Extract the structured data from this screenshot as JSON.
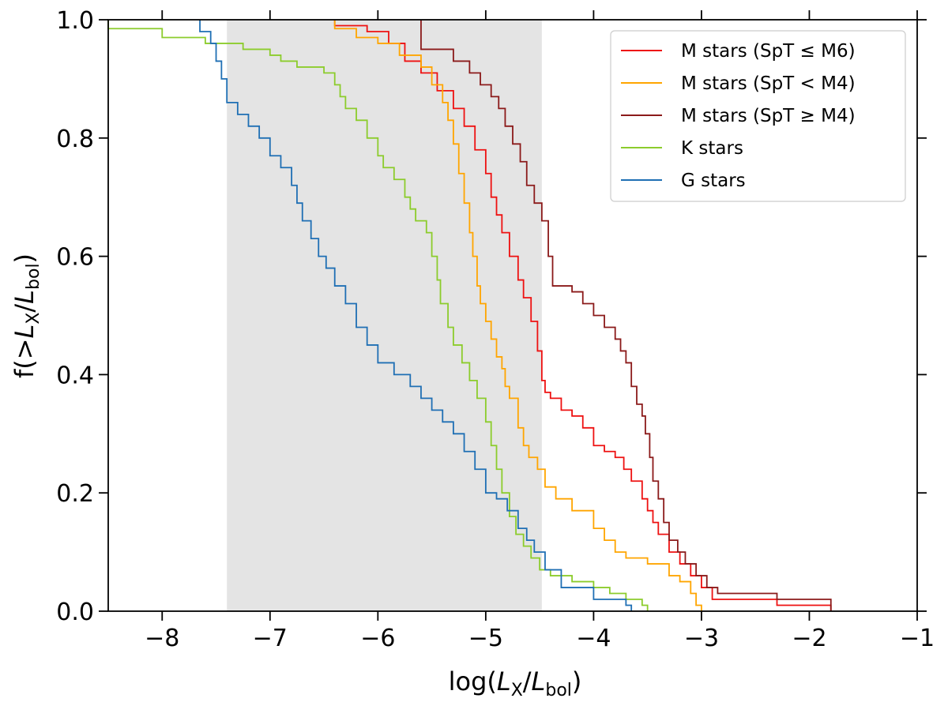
{
  "chart_data": {
    "type": "line",
    "xlabel_parts": {
      "open": "log(",
      "var": "L",
      "sub1": "X",
      "slash": "/",
      "var2": "L",
      "sub2": "bol",
      "close": ")"
    },
    "ylabel_parts": {
      "open": "f(>",
      "var": "L",
      "sub1": "X",
      "slash": "/",
      "var2": "L",
      "sub2": "bol",
      "close": ")"
    },
    "xlim": [
      -8.5,
      -1
    ],
    "ylim": [
      0,
      1
    ],
    "xticks": [
      -8,
      -7,
      -6,
      -5,
      -4,
      -3,
      -2,
      -1
    ],
    "xtick_labels": [
      "−8",
      "−7",
      "−6",
      "−5",
      "−4",
      "−3",
      "−2",
      "−1"
    ],
    "yticks": [
      0,
      0.2,
      0.4,
      0.6,
      0.8,
      1.0
    ],
    "ytick_labels": [
      "0.0",
      "0.2",
      "0.4",
      "0.6",
      "0.8",
      "1.0"
    ],
    "shaded_region": {
      "x": [
        -7.4,
        -4.48
      ],
      "color": "#e4e4e4"
    },
    "grid": false,
    "legend_position": "top-right",
    "series": [
      {
        "name": "M stars (SpT ≤ M6)",
        "color": "#ee1111",
        "points": [
          [
            -6.4,
            1.0
          ],
          [
            -6.4,
            0.99
          ],
          [
            -6.1,
            0.98
          ],
          [
            -5.9,
            0.96
          ],
          [
            -5.75,
            0.93
          ],
          [
            -5.6,
            0.91
          ],
          [
            -5.45,
            0.88
          ],
          [
            -5.3,
            0.85
          ],
          [
            -5.2,
            0.82
          ],
          [
            -5.1,
            0.78
          ],
          [
            -5.0,
            0.74
          ],
          [
            -4.95,
            0.7
          ],
          [
            -4.9,
            0.67
          ],
          [
            -4.85,
            0.64
          ],
          [
            -4.78,
            0.6
          ],
          [
            -4.7,
            0.56
          ],
          [
            -4.65,
            0.53
          ],
          [
            -4.58,
            0.49
          ],
          [
            -4.52,
            0.44
          ],
          [
            -4.48,
            0.39
          ],
          [
            -4.45,
            0.37
          ],
          [
            -4.4,
            0.36
          ],
          [
            -4.3,
            0.34
          ],
          [
            -4.2,
            0.33
          ],
          [
            -4.1,
            0.31
          ],
          [
            -4.0,
            0.28
          ],
          [
            -3.9,
            0.27
          ],
          [
            -3.8,
            0.26
          ],
          [
            -3.72,
            0.24
          ],
          [
            -3.65,
            0.22
          ],
          [
            -3.55,
            0.19
          ],
          [
            -3.5,
            0.17
          ],
          [
            -3.45,
            0.15
          ],
          [
            -3.4,
            0.13
          ],
          [
            -3.3,
            0.1
          ],
          [
            -3.2,
            0.08
          ],
          [
            -3.1,
            0.06
          ],
          [
            -3.0,
            0.04
          ],
          [
            -2.9,
            0.02
          ],
          [
            -2.3,
            0.01
          ],
          [
            -1.8,
            0.01
          ],
          [
            -1.8,
            0.0
          ]
        ]
      },
      {
        "name": "M stars (SpT < M4)",
        "color": "#ffa500",
        "points": [
          [
            -6.4,
            1.0
          ],
          [
            -6.4,
            0.985
          ],
          [
            -6.2,
            0.97
          ],
          [
            -6.0,
            0.96
          ],
          [
            -5.8,
            0.94
          ],
          [
            -5.6,
            0.92
          ],
          [
            -5.5,
            0.89
          ],
          [
            -5.4,
            0.86
          ],
          [
            -5.35,
            0.83
          ],
          [
            -5.3,
            0.79
          ],
          [
            -5.25,
            0.74
          ],
          [
            -5.2,
            0.69
          ],
          [
            -5.15,
            0.64
          ],
          [
            -5.12,
            0.6
          ],
          [
            -5.08,
            0.55
          ],
          [
            -5.05,
            0.52
          ],
          [
            -5.0,
            0.49
          ],
          [
            -4.95,
            0.46
          ],
          [
            -4.9,
            0.43
          ],
          [
            -4.85,
            0.41
          ],
          [
            -4.82,
            0.38
          ],
          [
            -4.78,
            0.36
          ],
          [
            -4.7,
            0.31
          ],
          [
            -4.65,
            0.28
          ],
          [
            -4.6,
            0.26
          ],
          [
            -4.52,
            0.24
          ],
          [
            -4.45,
            0.21
          ],
          [
            -4.35,
            0.19
          ],
          [
            -4.2,
            0.17
          ],
          [
            -4.0,
            0.14
          ],
          [
            -3.9,
            0.12
          ],
          [
            -3.8,
            0.1
          ],
          [
            -3.7,
            0.09
          ],
          [
            -3.5,
            0.08
          ],
          [
            -3.3,
            0.06
          ],
          [
            -3.2,
            0.05
          ],
          [
            -3.1,
            0.03
          ],
          [
            -3.05,
            0.01
          ],
          [
            -3.0,
            0.0
          ]
        ]
      },
      {
        "name": "M stars (SpT ≥ M4)",
        "color": "#8b1a1a",
        "points": [
          [
            -5.6,
            1.0
          ],
          [
            -5.6,
            0.95
          ],
          [
            -5.3,
            0.93
          ],
          [
            -5.15,
            0.91
          ],
          [
            -5.05,
            0.89
          ],
          [
            -4.95,
            0.87
          ],
          [
            -4.88,
            0.85
          ],
          [
            -4.82,
            0.82
          ],
          [
            -4.75,
            0.79
          ],
          [
            -4.68,
            0.76
          ],
          [
            -4.62,
            0.72
          ],
          [
            -4.55,
            0.69
          ],
          [
            -4.48,
            0.66
          ],
          [
            -4.42,
            0.6
          ],
          [
            -4.38,
            0.55
          ],
          [
            -4.3,
            0.55
          ],
          [
            -4.2,
            0.54
          ],
          [
            -4.1,
            0.52
          ],
          [
            -4.0,
            0.5
          ],
          [
            -3.9,
            0.48
          ],
          [
            -3.8,
            0.46
          ],
          [
            -3.75,
            0.44
          ],
          [
            -3.7,
            0.42
          ],
          [
            -3.65,
            0.38
          ],
          [
            -3.6,
            0.35
          ],
          [
            -3.55,
            0.33
          ],
          [
            -3.52,
            0.3
          ],
          [
            -3.48,
            0.26
          ],
          [
            -3.45,
            0.22
          ],
          [
            -3.4,
            0.19
          ],
          [
            -3.35,
            0.15
          ],
          [
            -3.3,
            0.12
          ],
          [
            -3.22,
            0.1
          ],
          [
            -3.15,
            0.08
          ],
          [
            -3.05,
            0.06
          ],
          [
            -2.95,
            0.04
          ],
          [
            -2.85,
            0.03
          ],
          [
            -2.3,
            0.02
          ],
          [
            -1.8,
            0.02
          ],
          [
            -1.8,
            0.0
          ]
        ]
      },
      {
        "name": "K stars",
        "color": "#8ccc2c",
        "points": [
          [
            -8.5,
            1.0
          ],
          [
            -8.5,
            0.985
          ],
          [
            -8.0,
            0.97
          ],
          [
            -7.8,
            0.97
          ],
          [
            -7.6,
            0.96
          ],
          [
            -7.4,
            0.96
          ],
          [
            -7.25,
            0.95
          ],
          [
            -7.0,
            0.94
          ],
          [
            -6.9,
            0.93
          ],
          [
            -6.75,
            0.92
          ],
          [
            -6.5,
            0.91
          ],
          [
            -6.4,
            0.89
          ],
          [
            -6.35,
            0.87
          ],
          [
            -6.3,
            0.85
          ],
          [
            -6.2,
            0.83
          ],
          [
            -6.1,
            0.8
          ],
          [
            -6.0,
            0.77
          ],
          [
            -5.95,
            0.75
          ],
          [
            -5.85,
            0.73
          ],
          [
            -5.75,
            0.7
          ],
          [
            -5.7,
            0.68
          ],
          [
            -5.65,
            0.66
          ],
          [
            -5.55,
            0.64
          ],
          [
            -5.5,
            0.6
          ],
          [
            -5.45,
            0.56
          ],
          [
            -5.42,
            0.52
          ],
          [
            -5.35,
            0.48
          ],
          [
            -5.3,
            0.45
          ],
          [
            -5.22,
            0.42
          ],
          [
            -5.15,
            0.39
          ],
          [
            -5.08,
            0.36
          ],
          [
            -5.0,
            0.32
          ],
          [
            -4.95,
            0.28
          ],
          [
            -4.9,
            0.24
          ],
          [
            -4.85,
            0.2
          ],
          [
            -4.78,
            0.16
          ],
          [
            -4.72,
            0.13
          ],
          [
            -4.65,
            0.11
          ],
          [
            -4.58,
            0.09
          ],
          [
            -4.5,
            0.07
          ],
          [
            -4.4,
            0.06
          ],
          [
            -4.2,
            0.05
          ],
          [
            -4.0,
            0.04
          ],
          [
            -3.85,
            0.03
          ],
          [
            -3.7,
            0.02
          ],
          [
            -3.55,
            0.01
          ],
          [
            -3.5,
            0.0
          ]
        ]
      },
      {
        "name": "G stars",
        "color": "#1f6fb4",
        "points": [
          [
            -7.65,
            1.0
          ],
          [
            -7.65,
            0.98
          ],
          [
            -7.55,
            0.96
          ],
          [
            -7.5,
            0.93
          ],
          [
            -7.45,
            0.9
          ],
          [
            -7.4,
            0.86
          ],
          [
            -7.3,
            0.84
          ],
          [
            -7.2,
            0.82
          ],
          [
            -7.1,
            0.8
          ],
          [
            -7.0,
            0.77
          ],
          [
            -6.9,
            0.75
          ],
          [
            -6.8,
            0.72
          ],
          [
            -6.75,
            0.69
          ],
          [
            -6.7,
            0.66
          ],
          [
            -6.62,
            0.63
          ],
          [
            -6.55,
            0.6
          ],
          [
            -6.48,
            0.58
          ],
          [
            -6.4,
            0.55
          ],
          [
            -6.3,
            0.52
          ],
          [
            -6.2,
            0.48
          ],
          [
            -6.1,
            0.45
          ],
          [
            -6.0,
            0.42
          ],
          [
            -5.85,
            0.4
          ],
          [
            -5.7,
            0.38
          ],
          [
            -5.6,
            0.36
          ],
          [
            -5.5,
            0.34
          ],
          [
            -5.4,
            0.32
          ],
          [
            -5.3,
            0.3
          ],
          [
            -5.2,
            0.27
          ],
          [
            -5.1,
            0.24
          ],
          [
            -5.0,
            0.2
          ],
          [
            -4.9,
            0.19
          ],
          [
            -4.8,
            0.17
          ],
          [
            -4.7,
            0.14
          ],
          [
            -4.62,
            0.12
          ],
          [
            -4.55,
            0.1
          ],
          [
            -4.45,
            0.07
          ],
          [
            -4.3,
            0.04
          ],
          [
            -4.0,
            0.02
          ],
          [
            -3.7,
            0.01
          ],
          [
            -3.65,
            0.0
          ]
        ]
      }
    ]
  }
}
